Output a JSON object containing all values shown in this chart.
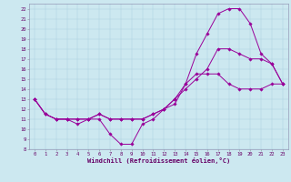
{
  "xlabel": "Windchill (Refroidissement éolien,°C)",
  "background_color": "#cce8f0",
  "line_color": "#990099",
  "grid_color": "#aaccdd",
  "xlim": [
    -0.5,
    23.5
  ],
  "ylim": [
    8,
    22.5
  ],
  "xticks": [
    0,
    1,
    2,
    3,
    4,
    5,
    6,
    7,
    8,
    9,
    10,
    11,
    12,
    13,
    14,
    15,
    16,
    17,
    18,
    19,
    20,
    21,
    22,
    23
  ],
  "yticks": [
    8,
    9,
    10,
    11,
    12,
    13,
    14,
    15,
    16,
    17,
    18,
    19,
    20,
    21,
    22
  ],
  "curve1_x": [
    0,
    1,
    2,
    3,
    4,
    5,
    6,
    7,
    8,
    9,
    10,
    11,
    12,
    13,
    14,
    15,
    16,
    17,
    18,
    19,
    20,
    21,
    22,
    23
  ],
  "curve1_y": [
    13,
    11.5,
    11,
    11,
    10.5,
    11,
    11,
    9.5,
    8.5,
    8.5,
    10.5,
    11.0,
    12.0,
    12.5,
    14.5,
    17.5,
    19.5,
    21.5,
    22,
    22,
    20.5,
    17.5,
    16.5,
    14.5
  ],
  "curve2_x": [
    0,
    1,
    2,
    3,
    4,
    5,
    6,
    7,
    8,
    9,
    10,
    11,
    12,
    13,
    14,
    15,
    16,
    17,
    18,
    19,
    20,
    21,
    22,
    23
  ],
  "curve2_y": [
    13,
    11.5,
    11,
    11,
    11,
    11,
    11.5,
    11,
    11,
    11,
    11,
    11.5,
    12,
    13,
    14,
    15,
    16,
    18,
    18,
    17.5,
    17,
    17,
    16.5,
    14.5
  ],
  "curve3_x": [
    0,
    1,
    2,
    3,
    4,
    5,
    6,
    7,
    8,
    9,
    10,
    11,
    12,
    13,
    14,
    15,
    16,
    17,
    18,
    19,
    20,
    21,
    22,
    23
  ],
  "curve3_y": [
    13,
    11.5,
    11,
    11,
    11,
    11,
    11.5,
    11,
    11,
    11,
    11,
    11.5,
    12,
    13,
    14.5,
    15.5,
    15.5,
    15.5,
    14.5,
    14,
    14,
    14,
    14.5,
    14.5
  ]
}
